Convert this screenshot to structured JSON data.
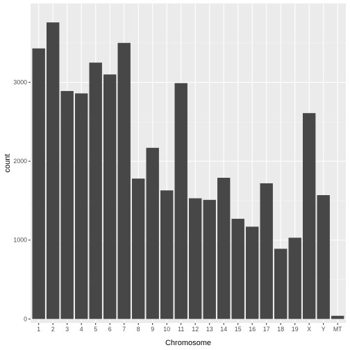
{
  "chart_data": {
    "type": "bar",
    "categories": [
      "1",
      "2",
      "3",
      "4",
      "5",
      "6",
      "7",
      "8",
      "9",
      "10",
      "11",
      "12",
      "13",
      "14",
      "15",
      "16",
      "17",
      "18",
      "19",
      "X",
      "Y",
      "MT"
    ],
    "values": [
      3430,
      3760,
      2890,
      2860,
      3250,
      3100,
      3500,
      1780,
      2170,
      1630,
      2990,
      1530,
      1510,
      1790,
      1270,
      1170,
      1720,
      890,
      1030,
      2610,
      1570,
      40
    ],
    "xlabel": "Chromosome",
    "ylabel": "count",
    "ylim": [
      -50,
      4000
    ],
    "yticks": [
      0,
      1000,
      2000,
      3000
    ],
    "grid": true,
    "colors": {
      "bar": "#474747",
      "panel": "#ebebeb",
      "grid_major": "#ffffff"
    }
  }
}
